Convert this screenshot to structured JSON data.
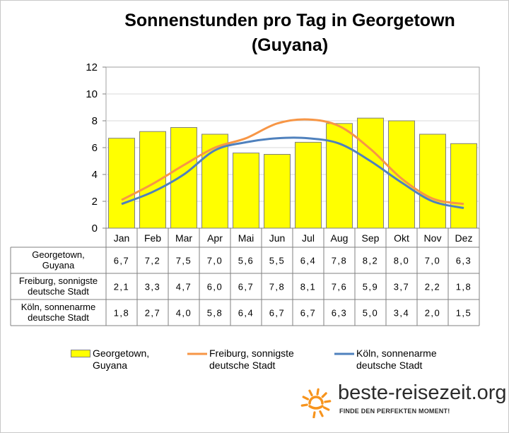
{
  "chart_data": {
    "type": "bar",
    "title": "Sonnenstunden pro Tag in Georgetown\n(Guyana)",
    "categories": [
      "Jan",
      "Feb",
      "Mar",
      "Apr",
      "Mai",
      "Jun",
      "Jul",
      "Aug",
      "Sep",
      "Okt",
      "Nov",
      "Dez"
    ],
    "ylim": [
      0,
      12
    ],
    "yticks": [
      "0",
      "2",
      "4",
      "6",
      "8",
      "10",
      "12"
    ],
    "grid": true,
    "legend_position": "bottom",
    "series": [
      {
        "name": "Georgetown, Guyana",
        "row_label": "Georgetown,\nGuyana",
        "legend_label": "Georgetown,\nGuyana",
        "type": "bar",
        "color": "#ffff00",
        "values": [
          6.7,
          7.2,
          7.5,
          7.0,
          5.6,
          5.5,
          6.4,
          7.8,
          8.2,
          8.0,
          7.0,
          6.3
        ],
        "labels": [
          "6,7",
          "7,2",
          "7,5",
          "7,0",
          "5,6",
          "5,5",
          "6,4",
          "7,8",
          "8,2",
          "8,0",
          "7,0",
          "6,3"
        ]
      },
      {
        "name": "Freiburg, sonnigste deutsche Stadt",
        "row_label": "Freiburg, sonnigste\ndeutsche Stadt",
        "legend_label": "Freiburg, sonnigste\ndeutsche Stadt",
        "type": "line",
        "color": "#f79646",
        "values": [
          2.1,
          3.3,
          4.7,
          6.0,
          6.7,
          7.8,
          8.1,
          7.6,
          5.9,
          3.7,
          2.2,
          1.8
        ],
        "labels": [
          "2,1",
          "3,3",
          "4,7",
          "6,0",
          "6,7",
          "7,8",
          "8,1",
          "7,6",
          "5,9",
          "3,7",
          "2,2",
          "1,8"
        ]
      },
      {
        "name": "Köln, sonnenarme deutsche Stadt",
        "row_label": "Köln, sonnenarme\ndeutsche Stadt",
        "legend_label": "Köln, sonnenarme\ndeutsche Stadt",
        "type": "line",
        "color": "#4f81bd",
        "values": [
          1.8,
          2.7,
          4.0,
          5.8,
          6.4,
          6.7,
          6.7,
          6.3,
          5.0,
          3.4,
          2.0,
          1.5
        ],
        "labels": [
          "1,8",
          "2,7",
          "4,0",
          "5,8",
          "6,4",
          "6,7",
          "6,7",
          "6,3",
          "5,0",
          "3,4",
          "2,0",
          "1,5"
        ]
      }
    ]
  },
  "brand": {
    "name": "beste-reisezeit.org",
    "tagline": "FINDE DEN PERFEKTEN MOMENT!",
    "sun_color": "#f7941d"
  }
}
